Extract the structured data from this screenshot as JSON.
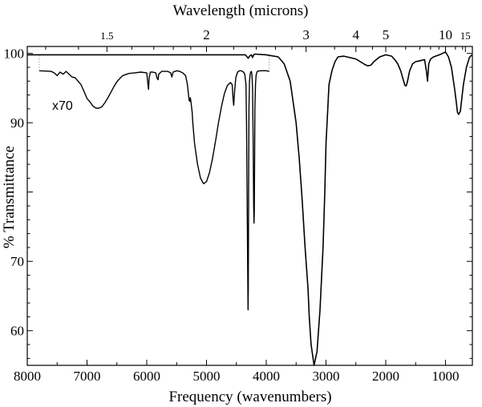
{
  "chart_data": {
    "type": "line",
    "title": "",
    "xlabel": "Frequency (wavenumbers)",
    "ylabel": "% Transmittance",
    "top_xlabel": "Wavelength (microns)",
    "xlim": [
      8000,
      550
    ],
    "ylim": [
      55,
      101
    ],
    "x_ticks": [
      8000,
      7000,
      6000,
      5000,
      4000,
      3000,
      2000,
      1000
    ],
    "x_tick_labels": [
      "8000",
      "7000",
      "6000",
      "5000",
      "4000",
      "3000",
      "2000",
      "1000"
    ],
    "y_ticks": [
      60,
      70,
      90,
      100
    ],
    "y_tick_labels": [
      "60",
      "70",
      "90",
      "100"
    ],
    "top_ticks": [
      {
        "microns": 1.5,
        "label": "1.5",
        "small": true
      },
      {
        "microns": 2,
        "label": "2",
        "small": false
      },
      {
        "microns": 3,
        "label": "3",
        "small": false
      },
      {
        "microns": 4,
        "label": "4",
        "small": false
      },
      {
        "microns": 5,
        "label": "5",
        "small": false
      },
      {
        "microns": 10,
        "label": "10",
        "small": false
      },
      {
        "microns": 15,
        "label": "15",
        "small": true
      }
    ],
    "annotation": "x70",
    "series": [
      {
        "style": "main",
        "x": [
          8000,
          4700,
          4350,
          4320,
          4300,
          4280,
          4250,
          4230,
          4210,
          4190,
          4000,
          3800,
          3700,
          3600,
          3500,
          3450,
          3400,
          3350,
          3300,
          3280,
          3250,
          3200,
          3150,
          3100,
          3050,
          3020,
          3000,
          2970,
          2950,
          2900,
          2850,
          2800,
          2700,
          2500,
          2350,
          2300,
          2250,
          2200,
          2100,
          2000,
          1900,
          1850,
          1800,
          1750,
          1700,
          1680,
          1660,
          1640,
          1600,
          1550,
          1500,
          1450,
          1400,
          1350,
          1320,
          1300,
          1280,
          1250,
          1200,
          1100,
          1050,
          1000,
          950,
          900,
          850,
          820,
          800,
          780,
          750,
          720,
          700,
          650,
          600,
          560
        ],
        "y": [
          99.8,
          99.8,
          99.8,
          99.5,
          99.3,
          99.6,
          99.8,
          99.4,
          99.8,
          99.9,
          99.8,
          99.5,
          98.5,
          96,
          90,
          85,
          79,
          72,
          66,
          62,
          58,
          55,
          57,
          63,
          72,
          80,
          87,
          92,
          95.5,
          97.5,
          98.8,
          99.5,
          99.6,
          99.2,
          98.4,
          98.2,
          98.3,
          98.8,
          99.5,
          99.8,
          99.6,
          99.1,
          98.5,
          97.5,
          96,
          95.4,
          95.3,
          95.8,
          97.5,
          98.5,
          98.8,
          98.9,
          99.0,
          99.1,
          97.5,
          96,
          98.5,
          99.2,
          99.5,
          99.8,
          100,
          100.2,
          99.5,
          98,
          95,
          93,
          91.5,
          91.2,
          91.7,
          94,
          95.5,
          98,
          99.4,
          99.8
        ]
      },
      {
        "style": "magnified",
        "x": [
          7800,
          7600,
          7550,
          7500,
          7450,
          7400,
          7350,
          7300,
          7250,
          7200,
          7150,
          7100,
          7050,
          7000,
          6950,
          6900,
          6850,
          6800,
          6750,
          6700,
          6650,
          6600,
          6550,
          6500,
          6450,
          6400,
          6300,
          6200,
          6100,
          6000,
          5980,
          5970,
          5960,
          5940,
          5900,
          5850,
          5830,
          5810,
          5800,
          5750,
          5700,
          5650,
          5600,
          5580,
          5560,
          5500,
          5450,
          5400,
          5350,
          5320,
          5300,
          5290,
          5280,
          5270,
          5260,
          5250,
          5240,
          5230,
          5200,
          5150,
          5100,
          5050,
          5000,
          4950,
          4900,
          4850,
          4800,
          4750,
          4700,
          4650,
          4600,
          4570,
          4555,
          4545,
          4530,
          4510,
          4480,
          4450,
          4420,
          4400,
          4380,
          4360,
          4340,
          4330,
          4320,
          4310,
          4305,
          4300,
          4295,
          4290,
          4280,
          4270,
          4260,
          4250,
          4240,
          4230,
          4220,
          4210,
          4205,
          4200,
          4195,
          4190,
          4180,
          4170,
          4160,
          4150,
          4100,
          4050,
          4000,
          3950
        ],
        "y": [
          97.5,
          97.4,
          97.2,
          96.8,
          97.3,
          97.0,
          97.4,
          97.0,
          96.6,
          96.5,
          96.0,
          95.5,
          94.5,
          93.5,
          93.0,
          92.4,
          92.1,
          92.1,
          92.3,
          92.9,
          93.6,
          94.4,
          95.2,
          95.9,
          96.4,
          96.8,
          97.1,
          97.2,
          97.3,
          97.2,
          95.5,
          94.8,
          96.5,
          97.3,
          97.3,
          97.2,
          96.5,
          96.2,
          97.0,
          97.4,
          97.4,
          97.4,
          97.2,
          96.6,
          97.3,
          97.5,
          97.4,
          97.2,
          96.8,
          95.5,
          94.0,
          93.2,
          93.1,
          93.6,
          93.0,
          92.2,
          91.5,
          90.0,
          87.0,
          84.0,
          82.0,
          81.2,
          81.5,
          82.8,
          84.8,
          87.3,
          90.0,
          92.3,
          94.2,
          95.4,
          95.8,
          95.5,
          93.5,
          92.5,
          94.5,
          96.5,
          97.3,
          97.5,
          97.5,
          97.4,
          97.3,
          97.0,
          95.5,
          90.0,
          80.0,
          68.0,
          63.0,
          66.0,
          80.0,
          92.0,
          96.0,
          97.0,
          97.3,
          97.4,
          97.0,
          95.0,
          88.0,
          78.0,
          75.5,
          77.0,
          85.0,
          92.0,
          95.5,
          96.8,
          97.2,
          97.4,
          97.5,
          97.5,
          97.5,
          97.4
        ]
      }
    ]
  }
}
